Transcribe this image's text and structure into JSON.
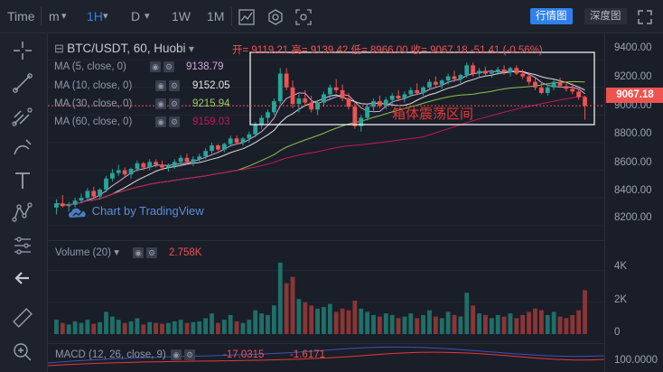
{
  "toolbar": {
    "time_label": "Time",
    "minute_label": "m",
    "interval_selected": "1H",
    "day_label": "D",
    "week_label": "1W",
    "month_label": "1M",
    "view_tabs": [
      "行情图",
      "深度图"
    ],
    "active_tab": "行情图"
  },
  "legend": {
    "symbol": "BTC/USDT, 60, Huobi",
    "ohlc": "开= 9119.21 高= 9139.42 低= 8966.00 收= 9067.18 -51.41 (-0.56%)",
    "ma": [
      {
        "label": "MA (5, close, 0)",
        "value": "9138.79",
        "color": "#d4a6d9"
      },
      {
        "label": "MA (10, close, 0)",
        "value": "9152.05",
        "color": "#e0e0e0"
      },
      {
        "label": "MA (30, close, 0)",
        "value": "9215.94",
        "color": "#8bc34a"
      },
      {
        "label": "MA (60, close, 0)",
        "value": "9159.03",
        "color": "#c2185b"
      }
    ]
  },
  "watermark": "Chart by TradingView",
  "annotation": "箱体震荡区间",
  "price_axis": {
    "ticks": [
      "9400.00",
      "9200.00",
      "9000.00",
      "8800.00",
      "8600.00",
      "8400.00",
      "8200.00"
    ],
    "current_price": "9067.18"
  },
  "volume": {
    "label": "Volume (20)",
    "value": "2.758K",
    "ticks": [
      "4K",
      "2K",
      "0"
    ]
  },
  "macd": {
    "label": "MACD (12, 26, close, 9)",
    "value1": "-17.0315",
    "value2": "-1.6171",
    "tick": "100.0000"
  },
  "colors": {
    "up": "#26a69a",
    "down": "#ef5350",
    "accent": "#2f80ed",
    "box": "#ffffff"
  },
  "chart_data": {
    "type": "candlestick",
    "price_range": [
      8100,
      9480
    ],
    "volume_range": [
      0,
      5000
    ],
    "candles": [
      [
        8330,
        8390,
        8280,
        8360
      ],
      [
        8360,
        8420,
        8330,
        8340
      ],
      [
        8340,
        8370,
        8300,
        8350
      ],
      [
        8350,
        8400,
        8330,
        8380
      ],
      [
        8380,
        8430,
        8360,
        8400
      ],
      [
        8400,
        8470,
        8380,
        8450
      ],
      [
        8450,
        8480,
        8400,
        8410
      ],
      [
        8410,
        8470,
        8390,
        8460
      ],
      [
        8460,
        8560,
        8440,
        8540
      ],
      [
        8540,
        8610,
        8520,
        8580
      ],
      [
        8580,
        8640,
        8560,
        8600
      ],
      [
        8600,
        8620,
        8550,
        8570
      ],
      [
        8570,
        8620,
        8540,
        8610
      ],
      [
        8610,
        8670,
        8590,
        8650
      ],
      [
        8650,
        8660,
        8600,
        8620
      ],
      [
        8620,
        8680,
        8600,
        8660
      ],
      [
        8660,
        8680,
        8620,
        8640
      ],
      [
        8640,
        8670,
        8600,
        8620
      ],
      [
        8620,
        8650,
        8590,
        8630
      ],
      [
        8630,
        8680,
        8610,
        8660
      ],
      [
        8660,
        8710,
        8640,
        8690
      ],
      [
        8690,
        8720,
        8640,
        8660
      ],
      [
        8660,
        8700,
        8630,
        8680
      ],
      [
        8680,
        8720,
        8650,
        8700
      ],
      [
        8700,
        8760,
        8680,
        8740
      ],
      [
        8740,
        8800,
        8720,
        8780
      ],
      [
        8780,
        8790,
        8740,
        8750
      ],
      [
        8750,
        8800,
        8730,
        8790
      ],
      [
        8790,
        8850,
        8770,
        8830
      ],
      [
        8830,
        8850,
        8790,
        8800
      ],
      [
        8800,
        8840,
        8780,
        8830
      ],
      [
        8830,
        8880,
        8800,
        8860
      ],
      [
        8860,
        8950,
        8840,
        8930
      ],
      [
        8930,
        9000,
        8900,
        8980
      ],
      [
        8980,
        9040,
        8940,
        9020
      ],
      [
        9020,
        9120,
        9000,
        9100
      ],
      [
        9100,
        9340,
        9080,
        9300
      ],
      [
        9300,
        9340,
        9180,
        9200
      ],
      [
        9200,
        9250,
        9050,
        9080
      ],
      [
        9080,
        9150,
        9020,
        9120
      ],
      [
        9120,
        9180,
        9060,
        9090
      ],
      [
        9090,
        9140,
        9020,
        9040
      ],
      [
        9040,
        9110,
        9000,
        9090
      ],
      [
        9090,
        9170,
        9060,
        9150
      ],
      [
        9150,
        9220,
        9120,
        9200
      ],
      [
        9200,
        9260,
        9160,
        9180
      ],
      [
        9180,
        9220,
        9100,
        9120
      ],
      [
        9120,
        9160,
        9040,
        9060
      ],
      [
        9060,
        9090,
        8900,
        8920
      ],
      [
        8920,
        9000,
        8880,
        8980
      ],
      [
        8980,
        9080,
        8960,
        9060
      ],
      [
        9060,
        9120,
        9030,
        9100
      ],
      [
        9100,
        9140,
        9050,
        9070
      ],
      [
        9070,
        9130,
        9040,
        9110
      ],
      [
        9110,
        9160,
        9080,
        9140
      ],
      [
        9140,
        9180,
        9100,
        9120
      ],
      [
        9120,
        9170,
        9090,
        9150
      ],
      [
        9150,
        9200,
        9130,
        9180
      ],
      [
        9180,
        9230,
        9150,
        9160
      ],
      [
        9160,
        9210,
        9140,
        9200
      ],
      [
        9200,
        9260,
        9180,
        9240
      ],
      [
        9240,
        9280,
        9200,
        9220
      ],
      [
        9220,
        9260,
        9190,
        9250
      ],
      [
        9250,
        9300,
        9220,
        9280
      ],
      [
        9280,
        9320,
        9240,
        9260
      ],
      [
        9260,
        9300,
        9230,
        9290
      ],
      [
        9290,
        9380,
        9270,
        9360
      ],
      [
        9360,
        9380,
        9280,
        9300
      ],
      [
        9300,
        9340,
        9270,
        9320
      ],
      [
        9320,
        9350,
        9280,
        9300
      ],
      [
        9300,
        9330,
        9270,
        9310
      ],
      [
        9310,
        9350,
        9290,
        9330
      ],
      [
        9330,
        9360,
        9290,
        9310
      ],
      [
        9310,
        9350,
        9280,
        9340
      ],
      [
        9340,
        9360,
        9290,
        9300
      ],
      [
        9300,
        9330,
        9260,
        9280
      ],
      [
        9280,
        9300,
        9220,
        9240
      ],
      [
        9240,
        9270,
        9180,
        9200
      ],
      [
        9200,
        9240,
        9150,
        9160
      ],
      [
        9160,
        9220,
        9140,
        9200
      ],
      [
        9200,
        9260,
        9180,
        9240
      ],
      [
        9240,
        9270,
        9200,
        9210
      ],
      [
        9210,
        9240,
        9170,
        9190
      ],
      [
        9190,
        9230,
        9150,
        9170
      ],
      [
        9170,
        9190,
        9110,
        9130
      ],
      [
        9130,
        9140,
        8966,
        9067
      ]
    ],
    "volumes": [
      900,
      700,
      600,
      800,
      700,
      900,
      650,
      750,
      1400,
      1100,
      900,
      700,
      800,
      1000,
      600,
      750,
      700,
      650,
      700,
      800,
      900,
      700,
      750,
      800,
      1000,
      1300,
      700,
      900,
      1200,
      800,
      700,
      900,
      1500,
      1300,
      1200,
      1800,
      4500,
      3200,
      3600,
      2200,
      2000,
      1800,
      1600,
      1700,
      1900,
      1400,
      1600,
      1500,
      2100,
      1600,
      1400,
      1200,
      1100,
      1300,
      1200,
      1000,
      1100,
      1300,
      1000,
      1200,
      1500,
      1100,
      1000,
      1400,
      1200,
      1100,
      2600,
      1800,
      1300,
      1200,
      1000,
      1200,
      1100,
      1300,
      1000,
      1200,
      1400,
      1600,
      1500,
      1200,
      1400,
      1100,
      1000,
      1200,
      1500,
      2758
    ]
  }
}
